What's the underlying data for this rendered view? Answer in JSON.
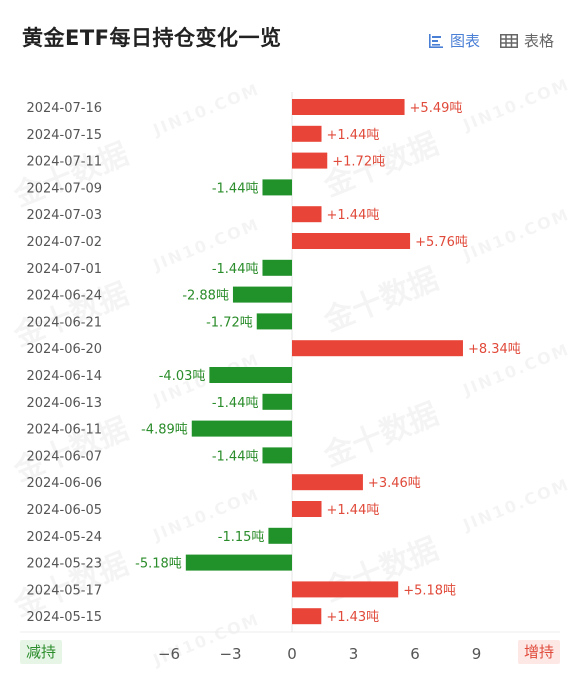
{
  "title": "黄金ETF每日持仓变化一览",
  "view_toggle": {
    "chart_label": "图表",
    "table_label": "表格",
    "chart_icon": "bar-chart-icon",
    "table_icon": "table-grid-icon",
    "active": "chart"
  },
  "watermark": [
    "金十数据",
    "JIN10.COM"
  ],
  "side_labels": {
    "negative": "减持",
    "positive": "增持"
  },
  "colors": {
    "positive": "#e84538",
    "negative": "#21912a",
    "positive_label": "#e04a3a",
    "negative_label": "#2a8c2a",
    "accent": "#4a7fd6"
  },
  "chart_data": {
    "type": "bar",
    "orientation": "horizontal",
    "unit": "吨",
    "categories": [
      "2024-07-16",
      "2024-07-15",
      "2024-07-11",
      "2024-07-09",
      "2024-07-03",
      "2024-07-02",
      "2024-07-01",
      "2024-06-24",
      "2024-06-21",
      "2024-06-20",
      "2024-06-14",
      "2024-06-13",
      "2024-06-11",
      "2024-06-07",
      "2024-06-06",
      "2024-06-05",
      "2024-05-24",
      "2024-05-23",
      "2024-05-17",
      "2024-05-15"
    ],
    "values": [
      5.49,
      1.44,
      1.72,
      -1.44,
      1.44,
      5.76,
      -1.44,
      -2.88,
      -1.72,
      8.34,
      -4.03,
      -1.44,
      -4.89,
      -1.44,
      3.46,
      1.44,
      -1.15,
      -5.18,
      5.18,
      1.43
    ],
    "value_labels": [
      "+5.49吨",
      "+1.44吨",
      "+1.72吨",
      "-1.44吨",
      "+1.44吨",
      "+5.76吨",
      "-1.44吨",
      "-2.88吨",
      "-1.72吨",
      "+8.34吨",
      "-4.03吨",
      "-1.44吨",
      "-4.89吨",
      "-1.44吨",
      "+3.46吨",
      "+1.44吨",
      "-1.15吨",
      "-5.18吨",
      "+5.18吨",
      "+1.43吨"
    ],
    "xticks": [
      "-6",
      "-3",
      "0",
      "3",
      "6",
      "9"
    ],
    "xlim": [
      -7,
      10
    ],
    "grid": false,
    "legend": "none"
  }
}
